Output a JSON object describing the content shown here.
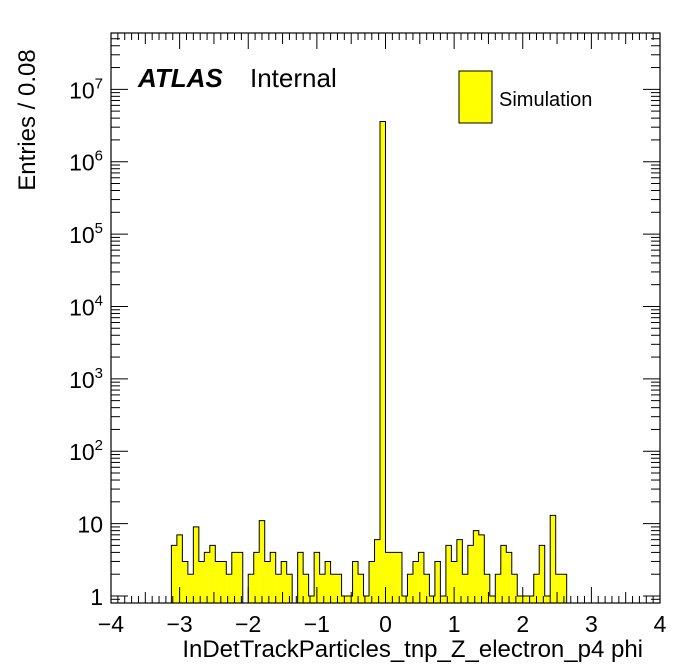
{
  "chart_data": {
    "type": "bar",
    "style": "histogram",
    "title": "",
    "xlabel": "InDetTrackParticles_tnp_Z_electron_p4 phi",
    "ylabel": "Entries / 0.08",
    "xlim": [
      -4,
      4
    ],
    "ylim": [
      0.8,
      60000000
    ],
    "yscale": "log",
    "bin_width": 0.08,
    "x_ticks": [
      "−4",
      "−3",
      "−2",
      "−1",
      "0",
      "1",
      "2",
      "3",
      "4"
    ],
    "y_ticks": [
      {
        "base": "1",
        "exp": ""
      },
      {
        "base": "10",
        "exp": ""
      },
      {
        "base": "10",
        "exp": "2"
      },
      {
        "base": "10",
        "exp": "3"
      },
      {
        "base": "10",
        "exp": "4"
      },
      {
        "base": "10",
        "exp": "5"
      },
      {
        "base": "10",
        "exp": "6"
      },
      {
        "base": "10",
        "exp": "7"
      }
    ],
    "series": [
      {
        "name": "Simulation",
        "bins_low_edge_start": -3.2,
        "values": [
          0,
          5,
          7,
          3,
          2,
          9,
          3,
          4,
          5,
          3,
          3,
          2,
          4,
          4,
          0,
          2,
          4,
          11,
          3,
          4,
          2,
          3,
          2,
          0,
          4,
          2,
          1,
          4,
          2,
          3,
          2,
          2,
          1,
          1,
          3,
          2,
          1,
          3,
          6,
          3600000,
          4,
          4,
          4,
          1,
          2,
          3,
          4,
          2,
          1,
          3,
          1,
          5,
          3,
          6,
          2,
          5,
          8,
          7,
          2,
          1,
          2,
          5,
          4,
          2,
          1,
          1,
          1,
          2,
          5,
          1,
          13,
          2,
          2
        ]
      }
    ],
    "fill_color": "#ffff00",
    "line_color": "#000000",
    "legend_position": "top-right",
    "grid": false
  },
  "labels": {
    "atlas": "ATLAS",
    "internal": "Internal",
    "legend_entry": "Simulation"
  }
}
